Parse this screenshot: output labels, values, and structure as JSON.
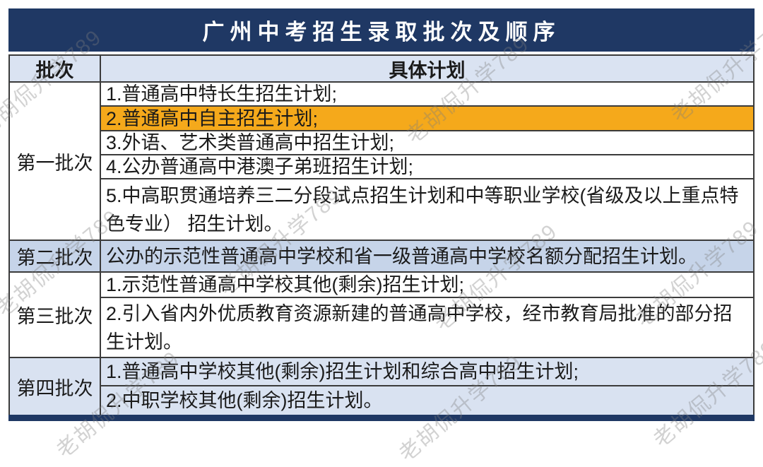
{
  "title": "广州中考招生录取批次及顺序",
  "watermark": {
    "text": "老胡侃升学789"
  },
  "colors": {
    "navy": "#1f3864",
    "orange": "#f5a91b",
    "blue": "#c6d4e9",
    "lightblue": "#d9e2f1",
    "header_bg": "#dae3f2",
    "border": "#3b3b3b"
  },
  "table": {
    "headers": {
      "batch": "批次",
      "plan": "具体计划"
    },
    "sections": [
      {
        "batch": "第一批次",
        "batch_bg": "white",
        "rows": [
          {
            "text": "1.普通高中特长生招生计划;",
            "bg": "white"
          },
          {
            "text": "2.普通高中自主招生计划;",
            "bg": "orange"
          },
          {
            "text": "3.外语、艺术类普通高中招生计划;",
            "bg": "white"
          },
          {
            "text": "4.公办普通高中港澳子弟班招生计划;",
            "bg": "white"
          },
          {
            "text": "5.中高职贯通培养三二分段试点招生计划和中等职业学校(省级及以上重点特色专业） 招生计划。",
            "bg": "white"
          }
        ]
      },
      {
        "batch": "第二批次",
        "batch_bg": "blue",
        "rows": [
          {
            "text": "公办的示范性普通高中学校和省一级普通高中学校名额分配招生计划。",
            "bg": "blue"
          }
        ]
      },
      {
        "batch": "第三批次",
        "batch_bg": "white",
        "rows": [
          {
            "text": "1.示范性普通高中学校其他(剩余)招生计划;",
            "bg": "white"
          },
          {
            "text": "2.引入省内外优质教育资源新建的普通高中学校，经市教育局批准的部分招生计划。",
            "bg": "white"
          }
        ]
      },
      {
        "batch": "第四批次",
        "batch_bg": "lightblue",
        "rows": [
          {
            "text": "1.普通高中学校其他(剩余)招生计划和综合高中招生计划;",
            "bg": "lightblue"
          },
          {
            "text": "2.中职学校其他(剩余)招生计划。",
            "bg": "lightblue"
          }
        ]
      }
    ]
  }
}
